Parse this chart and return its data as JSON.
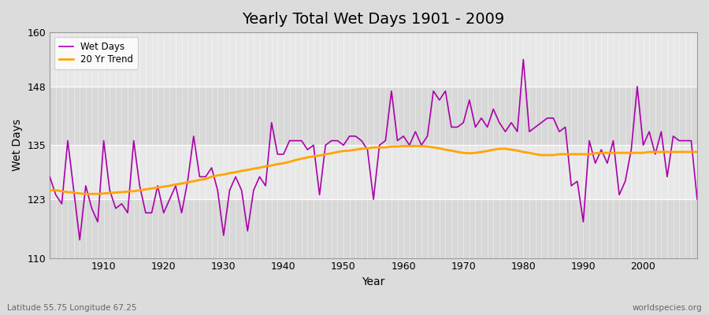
{
  "title": "Yearly Total Wet Days 1901 - 2009",
  "xlabel": "Year",
  "ylabel": "Wet Days",
  "lat_label": "Latitude 55.75 Longitude 67.25",
  "source_label": "worldspecies.org",
  "ylim": [
    110,
    160
  ],
  "yticks": [
    110,
    123,
    135,
    148,
    160
  ],
  "line_color": "#AA00AA",
  "trend_color": "#FFA500",
  "bg_color": "#DCDCDC",
  "bg_color2": "#E8E8E8",
  "grid_color": "#FFFFFF",
  "years": [
    1901,
    1902,
    1903,
    1904,
    1905,
    1906,
    1907,
    1908,
    1909,
    1910,
    1911,
    1912,
    1913,
    1914,
    1915,
    1916,
    1917,
    1918,
    1919,
    1920,
    1921,
    1922,
    1923,
    1924,
    1925,
    1926,
    1927,
    1928,
    1929,
    1930,
    1931,
    1932,
    1933,
    1934,
    1935,
    1936,
    1937,
    1938,
    1939,
    1940,
    1941,
    1942,
    1943,
    1944,
    1945,
    1946,
    1947,
    1948,
    1949,
    1950,
    1951,
    1952,
    1953,
    1954,
    1955,
    1956,
    1957,
    1958,
    1959,
    1960,
    1961,
    1962,
    1963,
    1964,
    1965,
    1966,
    1967,
    1968,
    1969,
    1970,
    1971,
    1972,
    1973,
    1974,
    1975,
    1976,
    1977,
    1978,
    1979,
    1980,
    1981,
    1982,
    1983,
    1984,
    1985,
    1986,
    1987,
    1988,
    1989,
    1990,
    1991,
    1992,
    1993,
    1994,
    1995,
    1996,
    1997,
    1998,
    1999,
    2000,
    2001,
    2002,
    2003,
    2004,
    2005,
    2006,
    2007,
    2008,
    2009
  ],
  "wet_days": [
    128,
    124,
    122,
    136,
    125,
    114,
    126,
    121,
    118,
    136,
    125,
    121,
    122,
    120,
    136,
    126,
    120,
    120,
    126,
    120,
    123,
    126,
    120,
    127,
    137,
    128,
    128,
    130,
    125,
    115,
    125,
    128,
    125,
    116,
    125,
    128,
    126,
    140,
    133,
    133,
    136,
    136,
    136,
    134,
    135,
    124,
    135,
    136,
    136,
    135,
    137,
    137,
    136,
    134,
    123,
    135,
    136,
    147,
    136,
    137,
    135,
    138,
    135,
    137,
    147,
    145,
    147,
    139,
    139,
    140,
    145,
    139,
    141,
    139,
    143,
    140,
    138,
    140,
    138,
    154,
    138,
    139,
    140,
    141,
    141,
    138,
    139,
    126,
    127,
    118,
    136,
    131,
    134,
    131,
    136,
    124,
    127,
    134,
    148,
    135,
    138,
    133,
    138,
    128,
    137,
    136,
    136,
    136,
    123
  ],
  "trend_years": [
    1901,
    1902,
    1903,
    1904,
    1905,
    1906,
    1907,
    1908,
    1909,
    1910,
    1911,
    1912,
    1913,
    1914,
    1915,
    1916,
    1917,
    1918,
    1919,
    1920,
    1921,
    1922,
    1923,
    1924,
    1925,
    1926,
    1927,
    1928,
    1929,
    1930,
    1931,
    1932,
    1933,
    1934,
    1935,
    1936,
    1937,
    1938,
    1939,
    1940,
    1941,
    1942,
    1943,
    1944,
    1945,
    1946,
    1947,
    1948,
    1949,
    1950,
    1951,
    1952,
    1953,
    1954,
    1955,
    1956,
    1957,
    1958,
    1959,
    1960,
    1961,
    1962,
    1963,
    1964,
    1965,
    1966,
    1967,
    1968,
    1969,
    1970,
    1971,
    1972,
    1973,
    1974,
    1975,
    1976,
    1977,
    1978,
    1979,
    1980,
    1981,
    1982,
    1983,
    1984,
    1985,
    1986,
    1987,
    1988,
    1989,
    1990,
    1991,
    1992,
    1993,
    1994,
    1995,
    1996,
    1997,
    1998,
    1999,
    2000,
    2001,
    2002,
    2003,
    2004,
    2005,
    2006,
    2007,
    2008,
    2009
  ],
  "trend_values": [
    125.0,
    125.0,
    124.8,
    124.6,
    124.5,
    124.3,
    124.2,
    124.2,
    124.2,
    124.3,
    124.4,
    124.5,
    124.6,
    124.7,
    124.8,
    125.0,
    125.2,
    125.4,
    125.6,
    125.8,
    126.0,
    126.3,
    126.5,
    126.8,
    127.0,
    127.3,
    127.5,
    128.0,
    128.3,
    128.5,
    128.8,
    129.0,
    129.3,
    129.5,
    129.8,
    130.0,
    130.3,
    130.5,
    130.8,
    131.0,
    131.3,
    131.7,
    132.0,
    132.3,
    132.5,
    132.7,
    133.0,
    133.2,
    133.5,
    133.7,
    133.8,
    134.0,
    134.2,
    134.3,
    134.5,
    134.5,
    134.5,
    134.7,
    134.7,
    134.8,
    134.8,
    134.8,
    134.8,
    134.7,
    134.5,
    134.3,
    134.0,
    133.8,
    133.5,
    133.3,
    133.2,
    133.3,
    133.5,
    133.7,
    134.0,
    134.2,
    134.2,
    134.0,
    133.8,
    133.5,
    133.3,
    133.0,
    132.8,
    132.8,
    132.8,
    133.0,
    133.0,
    133.0,
    133.0,
    133.0,
    133.0,
    133.2,
    133.3,
    133.3,
    133.3,
    133.3,
    133.3,
    133.3,
    133.3,
    133.3,
    133.5,
    133.5,
    133.5,
    133.5,
    133.5,
    133.5,
    133.5,
    133.5,
    133.5
  ]
}
